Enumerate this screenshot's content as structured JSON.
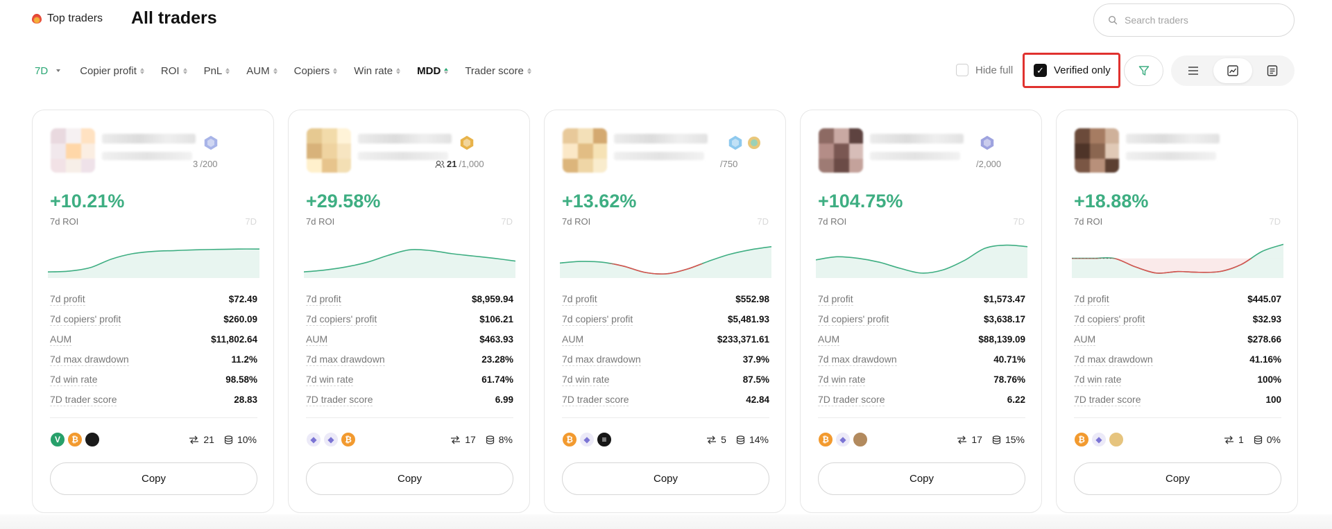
{
  "header": {
    "top_traders_label": "Top traders",
    "page_title": "All traders",
    "search_placeholder": "Search traders"
  },
  "filters": {
    "period": "7D",
    "sort_items": [
      "Copier profit",
      "ROI",
      "PnL",
      "AUM",
      "Copiers",
      "Win rate",
      "MDD",
      "Trader score"
    ],
    "active_sort": "MDD",
    "hide_full_label": "Hide full",
    "hide_full_checked": false,
    "verified_only_label": "Verified only",
    "verified_only_checked": true
  },
  "view_modes": [
    "list-icon",
    "chart-icon",
    "card-icon"
  ],
  "active_view": "chart-icon",
  "colors": {
    "positive": "#3eae82",
    "negative": "#d9534f",
    "highlight": "#e0322f"
  },
  "stat_labels": [
    "7d profit",
    "7d copiers' profit",
    "AUM",
    "7d max drawdown",
    "7d win rate",
    "7D trader score"
  ],
  "traders": [
    {
      "copiers_text": "/200",
      "copiers_prefix": "3",
      "roi": "+10.21%",
      "roi_label": "7d ROI",
      "period_mark": "7D",
      "chart": [
        0.05,
        0.07,
        0.16,
        0.38,
        0.52,
        0.58,
        0.6,
        0.62,
        0.63,
        0.64,
        0.64
      ],
      "stats": [
        "$72.49",
        "$260.09",
        "$11,802.64",
        "11.2%",
        "98.58%",
        "28.83"
      ],
      "coins": [
        "vet",
        "btc",
        "dark"
      ],
      "copiers_count": "21",
      "aum_ratio": "10%",
      "copy_label": "Copy"
    },
    {
      "copiers_text": "/1,000",
      "copiers_prefix": "21",
      "roi": "+29.58%",
      "roi_label": "7d ROI",
      "period_mark": "7D",
      "chart": [
        0.05,
        0.1,
        0.18,
        0.3,
        0.48,
        0.62,
        0.6,
        0.52,
        0.46,
        0.4,
        0.33
      ],
      "stats": [
        "$8,959.94",
        "$106.21",
        "$463.93",
        "23.28%",
        "61.74%",
        "6.99"
      ],
      "coins": [
        "eth",
        "eth",
        "btc"
      ],
      "copiers_count": "17",
      "aum_ratio": "8%",
      "copy_label": "Copy"
    },
    {
      "copiers_text": "/750",
      "copiers_prefix": "",
      "roi": "+13.62%",
      "roi_label": "7d ROI",
      "period_mark": "7D",
      "chart": [
        0.28,
        0.32,
        0.3,
        0.2,
        0.04,
        0.0,
        0.12,
        0.32,
        0.5,
        0.62,
        0.7
      ],
      "stats": [
        "$552.98",
        "$5,481.93",
        "$233,371.61",
        "37.9%",
        "87.5%",
        "42.84"
      ],
      "coins": [
        "btc",
        "eth",
        "sol"
      ],
      "copiers_count": "5",
      "aum_ratio": "14%",
      "copy_label": "Copy"
    },
    {
      "copiers_text": "/2,000",
      "copiers_prefix": "",
      "roi": "+104.75%",
      "roi_label": "7d ROI",
      "period_mark": "7D",
      "chart": [
        0.36,
        0.44,
        0.4,
        0.3,
        0.14,
        0.02,
        0.1,
        0.34,
        0.66,
        0.74,
        0.7
      ],
      "stats": [
        "$1,573.47",
        "$3,638.17",
        "$88,139.09",
        "40.71%",
        "78.76%",
        "6.22"
      ],
      "coins": [
        "btc",
        "eth",
        "art"
      ],
      "copiers_count": "17",
      "aum_ratio": "15%",
      "copy_label": "Copy"
    },
    {
      "copiers_text": "",
      "copiers_prefix": "",
      "roi": "+18.88%",
      "roi_label": "7d ROI",
      "period_mark": "7D",
      "chart": [
        0.4,
        0.4,
        0.4,
        0.18,
        0.02,
        0.06,
        0.04,
        0.06,
        0.24,
        0.58,
        0.76
      ],
      "stats": [
        "$445.07",
        "$32.93",
        "$278.66",
        "41.16%",
        "100%",
        "100"
      ],
      "coins": [
        "btc",
        "eth",
        "doge"
      ],
      "copiers_count": "1",
      "aum_ratio": "0%",
      "copy_label": "Copy"
    }
  ]
}
